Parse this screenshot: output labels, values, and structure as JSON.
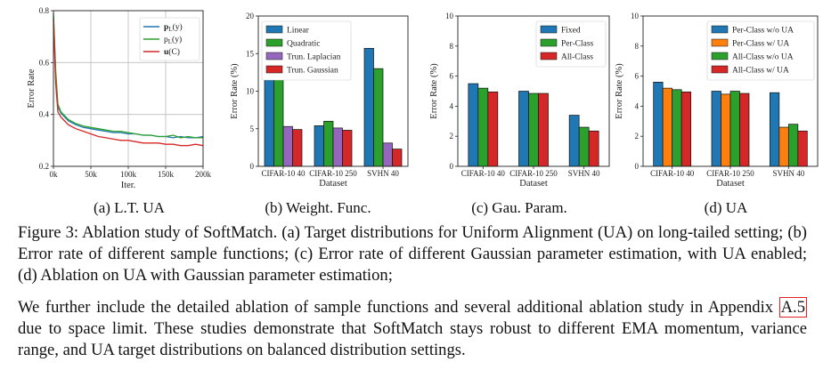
{
  "captions": {
    "a": "(a) L.T. UA",
    "b": "(b) Weight. Func.",
    "c": "(c) Gau. Param.",
    "d": "(d) UA"
  },
  "figure_caption": "Figure 3: Ablation study of SoftMatch. (a) Target distributions for Uniform Alignment (UA) on long-tailed setting; (b) Error rate of different sample functions; (c) Error rate of different Gaussian parameter estimation, with UA enabled; (d) Ablation on UA with Gaussian parameter estimation;",
  "body_text": {
    "before": "We further include the detailed ablation of sample functions and several additional ablation study in Appendix ",
    "ref": "A.5",
    "after": " due to space limit. These studies demonstrate that SoftMatch stays robust to different EMA momentum, variance range, and UA target distributions on balanced distribution settings."
  },
  "chart_data": [
    {
      "id": "a",
      "type": "line",
      "xlabel": "Iter.",
      "ylabel": "Error Rate",
      "x_ticks": [
        "0k",
        "50k",
        "100k",
        "150k",
        "200k"
      ],
      "y_ticks": [
        "0.2",
        "0.4",
        "0.6",
        "0.8"
      ],
      "xlim": [
        0,
        200
      ],
      "ylim": [
        0.2,
        0.8
      ],
      "grid": true,
      "legend": "top-right",
      "colors": [
        "#1f77b4",
        "#2ca02c",
        "#d62728"
      ],
      "series": [
        {
          "name": "p_L(y)",
          "legend_main": "p",
          "legend_sub": "L",
          "legend_tail": "(y)",
          "legend_bold": true,
          "x": [
            0,
            3,
            6,
            10,
            15,
            20,
            30,
            40,
            50,
            60,
            70,
            80,
            90,
            100,
            110,
            120,
            130,
            140,
            150,
            160,
            170,
            180,
            190,
            200
          ],
          "y": [
            0.78,
            0.55,
            0.43,
            0.405,
            0.39,
            0.375,
            0.36,
            0.35,
            0.345,
            0.34,
            0.335,
            0.33,
            0.33,
            0.325,
            0.325,
            0.32,
            0.32,
            0.315,
            0.315,
            0.31,
            0.315,
            0.31,
            0.31,
            0.315
          ]
        },
        {
          "name": "p_L(y)",
          "legend_main": "p",
          "legend_sub": "L",
          "legend_tail": "(y)",
          "legend_bold": false,
          "x": [
            0,
            3,
            6,
            10,
            15,
            20,
            30,
            40,
            50,
            60,
            70,
            80,
            90,
            100,
            110,
            120,
            130,
            140,
            150,
            160,
            170,
            180,
            190,
            200
          ],
          "y": [
            0.79,
            0.57,
            0.44,
            0.41,
            0.395,
            0.38,
            0.365,
            0.355,
            0.35,
            0.345,
            0.34,
            0.335,
            0.335,
            0.33,
            0.325,
            0.32,
            0.32,
            0.315,
            0.315,
            0.32,
            0.31,
            0.315,
            0.31,
            0.31
          ]
        },
        {
          "name": "u(C)",
          "legend_main": "u",
          "legend_sub": "",
          "legend_tail": "(C)",
          "legend_bold": true,
          "x": [
            0,
            3,
            6,
            10,
            15,
            20,
            30,
            40,
            50,
            60,
            70,
            80,
            90,
            100,
            110,
            120,
            130,
            140,
            150,
            160,
            170,
            180,
            190,
            200
          ],
          "y": [
            0.77,
            0.52,
            0.41,
            0.39,
            0.375,
            0.36,
            0.345,
            0.335,
            0.325,
            0.315,
            0.31,
            0.305,
            0.3,
            0.3,
            0.295,
            0.29,
            0.29,
            0.29,
            0.285,
            0.285,
            0.28,
            0.28,
            0.285,
            0.28
          ]
        }
      ]
    },
    {
      "id": "b",
      "type": "bar",
      "xlabel": "Dataset",
      "ylabel": "Error Rate (%)",
      "categories": [
        "CIFAR-10 40",
        "CIFAR-10 250",
        "SVHN 40"
      ],
      "ylim": [
        0,
        20
      ],
      "y_ticks": [
        "0",
        "5",
        "10",
        "15",
        "20"
      ],
      "legend": "top-left",
      "series": [
        {
          "name": "Linear",
          "color": "#1f77b4",
          "values": [
            11.5,
            5.4,
            15.7
          ]
        },
        {
          "name": "Quadratic",
          "color": "#2ca02c",
          "values": [
            18.0,
            6.0,
            13.0
          ]
        },
        {
          "name": "Trun. Laplacian",
          "color": "#9467bd",
          "values": [
            5.3,
            5.1,
            3.1
          ]
        },
        {
          "name": "Trun. Gaussian",
          "color": "#d62728",
          "values": [
            4.9,
            4.8,
            2.3
          ]
        }
      ]
    },
    {
      "id": "c",
      "type": "bar",
      "xlabel": "Dataset",
      "ylabel": "Error Rate (%)",
      "categories": [
        "CIFAR-10 40",
        "CIFAR-10 250",
        "SVHN 40"
      ],
      "ylim": [
        0,
        10
      ],
      "y_ticks": [
        "0",
        "2",
        "4",
        "6",
        "8",
        "10"
      ],
      "legend": "top-right",
      "series": [
        {
          "name": "Fixed",
          "color": "#1f77b4",
          "values": [
            5.5,
            5.0,
            3.4
          ]
        },
        {
          "name": "Per-Class",
          "color": "#2ca02c",
          "values": [
            5.2,
            4.85,
            2.6
          ]
        },
        {
          "name": "All-Class",
          "color": "#d62728",
          "values": [
            4.95,
            4.85,
            2.35
          ]
        }
      ]
    },
    {
      "id": "d",
      "type": "bar",
      "xlabel": "Dataset",
      "ylabel": "Error Rate (%)",
      "categories": [
        "CIFAR-10 40",
        "CIFAR-10 250",
        "SVHN 40"
      ],
      "ylim": [
        0,
        10
      ],
      "y_ticks": [
        "0",
        "2",
        "4",
        "6",
        "8",
        "10"
      ],
      "legend": "top-right",
      "series": [
        {
          "name": "Per-Class w/o UA",
          "color": "#1f77b4",
          "values": [
            5.6,
            5.0,
            4.9
          ]
        },
        {
          "name": "Per-Class w/ UA",
          "color": "#ff7f0e",
          "values": [
            5.2,
            4.8,
            2.6
          ]
        },
        {
          "name": "All-Class w/o UA",
          "color": "#2ca02c",
          "values": [
            5.1,
            5.0,
            2.8
          ]
        },
        {
          "name": "All-Class w/ UA",
          "color": "#d62728",
          "values": [
            4.95,
            4.85,
            2.35
          ]
        }
      ]
    }
  ]
}
